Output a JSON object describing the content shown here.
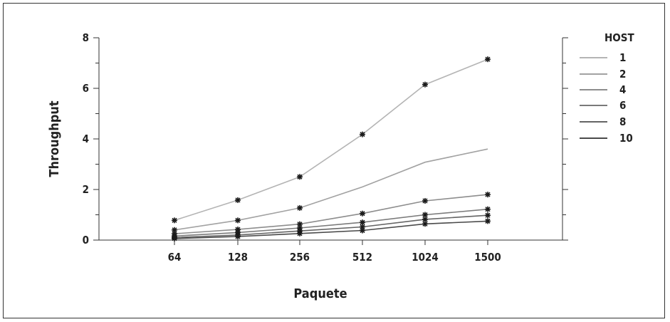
{
  "chart_data": {
    "type": "line",
    "title": "",
    "xlabel": "Paquete",
    "ylabel": "Throughput",
    "categories": [
      "64",
      "128",
      "256",
      "512",
      "1024",
      "1500"
    ],
    "yticks": [
      "0",
      "2",
      "4",
      "6",
      "8"
    ],
    "ylim": [
      0,
      8
    ],
    "grid": false,
    "legend": {
      "title": "HOST",
      "position": "right"
    },
    "marker": "asterisk",
    "series": [
      {
        "name": "1",
        "color": "#b4b4b4",
        "values": [
          0.78,
          1.58,
          2.5,
          4.18,
          6.15,
          7.15
        ],
        "markers": [
          true,
          true,
          true,
          true,
          true,
          true
        ]
      },
      {
        "name": "2",
        "color": "#a2a2a2",
        "values": [
          0.4,
          0.78,
          1.27,
          2.1,
          3.08,
          3.6
        ],
        "markers": [
          true,
          true,
          true,
          false,
          false,
          false
        ]
      },
      {
        "name": "4",
        "color": "#8d8d8d",
        "values": [
          0.25,
          0.42,
          0.63,
          1.05,
          1.55,
          1.8
        ],
        "markers": [
          true,
          true,
          true,
          true,
          true,
          true
        ]
      },
      {
        "name": "6",
        "color": "#7a7a7a",
        "values": [
          0.16,
          0.3,
          0.48,
          0.7,
          1.0,
          1.22
        ],
        "markers": [
          true,
          true,
          true,
          true,
          true,
          true
        ]
      },
      {
        "name": "8",
        "color": "#646464",
        "values": [
          0.1,
          0.2,
          0.36,
          0.52,
          0.82,
          0.98
        ],
        "markers": [
          true,
          true,
          true,
          true,
          true,
          true
        ]
      },
      {
        "name": "10",
        "color": "#4a4a4a",
        "values": [
          0.06,
          0.14,
          0.26,
          0.38,
          0.64,
          0.75
        ],
        "markers": [
          true,
          true,
          true,
          true,
          true,
          true
        ]
      }
    ]
  }
}
